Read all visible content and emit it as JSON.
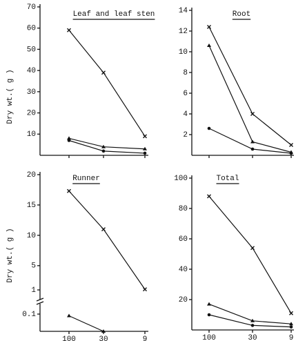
{
  "chart_data": [
    {
      "type": "line",
      "title": "Leaf and leaf sten",
      "y_label": "Dry wt.( g )",
      "categories": [
        null,
        null,
        null
      ],
      "ylim": [
        0,
        70
      ],
      "yticks": [
        10,
        20,
        30,
        40,
        50,
        60,
        70
      ],
      "series": [
        {
          "color": "#111111",
          "marker": "x",
          "values": [
            59,
            39,
            9
          ]
        },
        {
          "color": "#111111",
          "marker": "triangle",
          "values": [
            8,
            4,
            3
          ]
        },
        {
          "color": "#111111",
          "marker": "circle",
          "values": [
            7,
            2,
            1
          ]
        }
      ]
    },
    {
      "type": "line",
      "title": "Root",
      "categories": [
        null,
        null,
        null
      ],
      "ylim": [
        0,
        14
      ],
      "yticks": [
        2,
        4,
        6,
        8,
        10,
        12,
        14
      ],
      "series": [
        {
          "color": "#111111",
          "marker": "x",
          "values": [
            12.4,
            4,
            1
          ]
        },
        {
          "color": "#111111",
          "marker": "triangle",
          "values": [
            10.6,
            1.3,
            0.3
          ]
        },
        {
          "color": "#111111",
          "marker": "circle",
          "values": [
            2.6,
            0.6,
            0.2
          ]
        }
      ]
    },
    {
      "type": "line",
      "title": "Runner",
      "y_label": "Dry wt.( g )",
      "categories": [
        "100",
        "30",
        "9"
      ],
      "ylim": [
        0,
        20
      ],
      "ybreak": [
        0.1,
        1
      ],
      "yticks": [
        0.1,
        1,
        5,
        10,
        15,
        20
      ],
      "series": [
        {
          "color": "#111111",
          "marker": "x",
          "values": [
            17.3,
            11,
            1.1
          ]
        },
        {
          "color": "#111111",
          "marker": "triangle",
          "values": [
            0.09,
            0,
            null
          ]
        }
      ]
    },
    {
      "type": "line",
      "title": "Total",
      "categories": [
        "100",
        "30",
        "9"
      ],
      "ylim": [
        0,
        100
      ],
      "yticks": [
        20,
        40,
        60,
        80,
        100
      ],
      "series": [
        {
          "color": "#111111",
          "marker": "x",
          "values": [
            88,
            54,
            11
          ]
        },
        {
          "color": "#111111",
          "marker": "triangle",
          "values": [
            17,
            6,
            4
          ]
        },
        {
          "color": "#111111",
          "marker": "circle",
          "values": [
            10,
            3,
            2
          ]
        }
      ]
    }
  ]
}
